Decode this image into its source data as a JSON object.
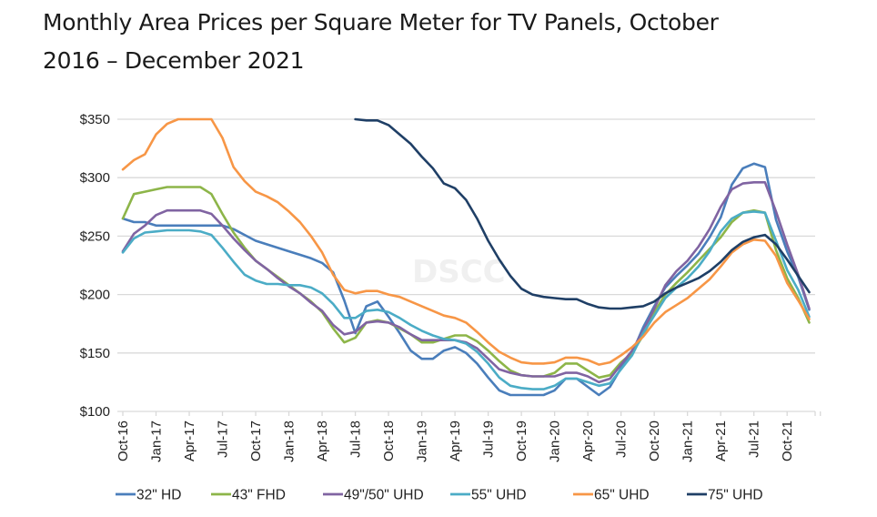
{
  "page": {
    "title_line1": "Monthly Area Prices per Square Meter for TV Panels, October",
    "title_line2": "2016 – December 2021"
  },
  "chart_data": {
    "type": "line",
    "title": "Monthly Area Prices per Square Meter for TV Panels, October 2016 – December 2021",
    "xlabel": "",
    "ylabel": "",
    "ylim": [
      100,
      350
    ],
    "yticks": [
      100,
      150,
      200,
      250,
      300,
      350
    ],
    "ytick_labels": [
      "$100",
      "$150",
      "$200",
      "$250",
      "$300",
      "$350"
    ],
    "grid": true,
    "legend_position": "bottom",
    "watermark": "DSCC",
    "x_start": "Oct-16",
    "x_end": "Dec-21",
    "xtick_labels": [
      "Oct-16",
      "Jan-17",
      "Apr-17",
      "Jul-17",
      "Oct-17",
      "Jan-18",
      "Apr-18",
      "Jul-18",
      "Oct-18",
      "Jan-19",
      "Apr-19",
      "Jul-19",
      "Oct-19",
      "Jan-20",
      "Apr-20",
      "Jul-20",
      "Oct-20",
      "Jan-21",
      "Apr-21",
      "Jul-21",
      "Oct-21"
    ],
    "x": [
      "Oct-16",
      "Nov-16",
      "Dec-16",
      "Jan-17",
      "Feb-17",
      "Mar-17",
      "Apr-17",
      "May-17",
      "Jun-17",
      "Jul-17",
      "Aug-17",
      "Sep-17",
      "Oct-17",
      "Nov-17",
      "Dec-17",
      "Jan-18",
      "Feb-18",
      "Mar-18",
      "Apr-18",
      "May-18",
      "Jun-18",
      "Jul-18",
      "Aug-18",
      "Sep-18",
      "Oct-18",
      "Nov-18",
      "Dec-18",
      "Jan-19",
      "Feb-19",
      "Mar-19",
      "Apr-19",
      "May-19",
      "Jun-19",
      "Jul-19",
      "Aug-19",
      "Sep-19",
      "Oct-19",
      "Nov-19",
      "Dec-19",
      "Jan-20",
      "Feb-20",
      "Mar-20",
      "Apr-20",
      "May-20",
      "Jun-20",
      "Jul-20",
      "Aug-20",
      "Sep-20",
      "Oct-20",
      "Nov-20",
      "Dec-20",
      "Jan-21",
      "Feb-21",
      "Mar-21",
      "Apr-21",
      "May-21",
      "Jun-21",
      "Jul-21",
      "Aug-21",
      "Sep-21",
      "Oct-21",
      "Nov-21",
      "Dec-21"
    ],
    "series": [
      {
        "name": "32\" HD",
        "color": "#4a7ebb",
        "values": [
          265,
          262,
          262,
          259,
          259,
          259,
          259,
          259,
          259,
          259,
          256,
          251,
          246,
          243,
          240,
          237,
          234,
          231,
          227,
          219,
          195,
          167,
          190,
          194,
          181,
          167,
          152,
          145,
          145,
          152,
          155,
          150,
          141,
          129,
          118,
          114,
          114,
          114,
          114,
          118,
          128,
          128,
          121,
          114,
          121,
          137,
          150,
          172,
          190,
          206,
          216,
          225,
          235,
          249,
          266,
          294,
          308,
          312,
          309,
          264,
          237,
          215,
          187
        ]
      },
      {
        "name": "43\" FHD",
        "color": "#8db549",
        "values": [
          265,
          286,
          288,
          290,
          292,
          292,
          292,
          292,
          286,
          269,
          253,
          240,
          229,
          222,
          215,
          208,
          201,
          194,
          185,
          171,
          159,
          163,
          176,
          178,
          176,
          171,
          166,
          159,
          159,
          162,
          165,
          165,
          160,
          152,
          143,
          135,
          131,
          130,
          130,
          133,
          141,
          141,
          135,
          129,
          131,
          142,
          150,
          165,
          185,
          200,
          210,
          219,
          229,
          239,
          249,
          262,
          270,
          272,
          270,
          238,
          214,
          197,
          176
        ]
      },
      {
        "name": "49\"/50\" UHD",
        "color": "#8064a2",
        "values": [
          237,
          252,
          259,
          268,
          272,
          272,
          272,
          272,
          269,
          259,
          248,
          238,
          229,
          222,
          214,
          207,
          201,
          193,
          186,
          174,
          166,
          168,
          176,
          177,
          176,
          172,
          166,
          161,
          161,
          161,
          161,
          159,
          154,
          145,
          136,
          133,
          131,
          130,
          130,
          130,
          133,
          133,
          130,
          125,
          128,
          140,
          152,
          169,
          188,
          208,
          220,
          229,
          241,
          256,
          275,
          290,
          295,
          296,
          296,
          271,
          243,
          217,
          188
        ]
      },
      {
        "name": "55\" UHD",
        "color": "#4bacc6",
        "values": [
          236,
          248,
          253,
          254,
          255,
          255,
          255,
          254,
          251,
          240,
          228,
          217,
          212,
          209,
          209,
          208,
          208,
          206,
          201,
          192,
          180,
          180,
          186,
          187,
          185,
          180,
          174,
          169,
          165,
          162,
          161,
          158,
          151,
          141,
          129,
          122,
          120,
          119,
          119,
          122,
          128,
          128,
          125,
          122,
          124,
          136,
          148,
          167,
          182,
          197,
          206,
          214,
          224,
          237,
          254,
          265,
          270,
          271,
          270,
          246,
          221,
          204,
          181
        ]
      },
      {
        "name": "65\" UHD",
        "color": "#f79646",
        "values": [
          307,
          315,
          320,
          337,
          346,
          350,
          350,
          350,
          350,
          334,
          309,
          297,
          288,
          284,
          279,
          271,
          262,
          250,
          236,
          217,
          204,
          201,
          203,
          203,
          200,
          198,
          194,
          190,
          186,
          182,
          180,
          176,
          168,
          159,
          151,
          146,
          142,
          141,
          141,
          142,
          146,
          146,
          144,
          140,
          142,
          148,
          155,
          164,
          176,
          185,
          191,
          197,
          205,
          213,
          224,
          236,
          243,
          247,
          246,
          233,
          210,
          195,
          179
        ]
      },
      {
        "name": "75\" UHD",
        "color": "#1f3f66",
        "values": [
          null,
          null,
          null,
          null,
          null,
          null,
          null,
          null,
          null,
          null,
          null,
          null,
          null,
          null,
          null,
          null,
          null,
          null,
          null,
          null,
          null,
          350,
          349,
          349,
          345,
          337,
          329,
          318,
          308,
          295,
          291,
          281,
          265,
          246,
          230,
          216,
          205,
          200,
          198,
          197,
          196,
          196,
          192,
          189,
          188,
          188,
          189,
          190,
          194,
          201,
          206,
          210,
          214,
          220,
          228,
          238,
          245,
          249,
          251,
          243,
          230,
          216,
          202
        ]
      }
    ]
  }
}
